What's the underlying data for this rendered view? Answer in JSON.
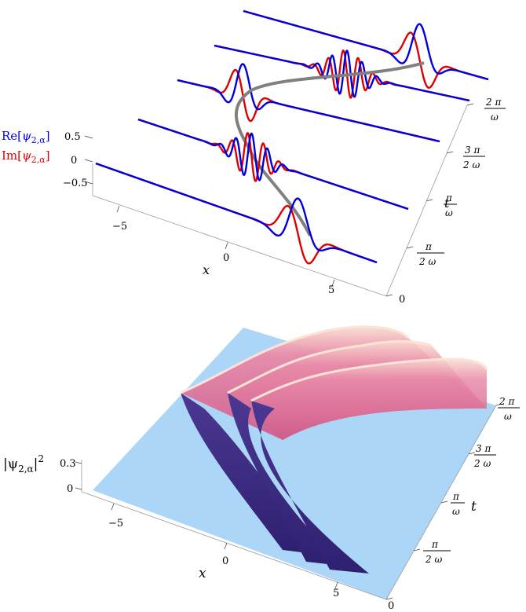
{
  "chart_data": [
    {
      "type": "line",
      "xlabel": "x",
      "tlabel": "t",
      "x_ticks": [
        "−5",
        "0",
        "5"
      ],
      "x_tick_values": [
        -5,
        0,
        5
      ],
      "x_range": [
        -8.5,
        8.5
      ],
      "t_ticks": [
        {
          "value_label": "0",
          "num": "",
          "den": ""
        },
        {
          "value_label": "",
          "num": "π",
          "den": "2 ω"
        },
        {
          "value_label": "",
          "num": "π",
          "den": "ω"
        },
        {
          "value_label": "",
          "num": "3 π",
          "den": "2 ω"
        },
        {
          "value_label": "",
          "num": "2 π",
          "den": "ω"
        }
      ],
      "t_values_over_pi_omega": [
        0,
        0.5,
        1,
        1.5,
        2
      ],
      "z_ticks": [
        "0.5",
        "0",
        "−0.5"
      ],
      "z_tick_values": [
        0.5,
        0,
        -0.5
      ],
      "series": [
        {
          "name": "Re[ψ2,α]",
          "color": "#0000dd"
        },
        {
          "name": "Im[ψ2,α]",
          "color": "#dd0000"
        }
      ],
      "center_path_color": "#808080",
      "slices_t_over_pi_omega": [
        0,
        0.5,
        1,
        1.5,
        2
      ]
    },
    {
      "type": "surface",
      "xlabel": "x",
      "tlabel": "t",
      "zlabel": "|ψ2,α|²",
      "x_ticks": [
        "−5",
        "0",
        "5"
      ],
      "x_tick_values": [
        -5,
        0,
        5
      ],
      "z_ticks": [
        "0.3",
        "0"
      ],
      "z_tick_values": [
        0.3,
        0
      ],
      "t_ticks": [
        {
          "value_label": "0",
          "num": "",
          "den": ""
        },
        {
          "value_label": "",
          "num": "π",
          "den": "2 ω"
        },
        {
          "value_label": "",
          "num": "π",
          "den": "ω"
        },
        {
          "value_label": "",
          "num": "3 π",
          "den": "2 ω"
        },
        {
          "value_label": "",
          "num": "2 π",
          "den": "ω"
        }
      ],
      "colors": {
        "floor": "#aad4f7",
        "low": "#3a2a80",
        "high": "#e8709a",
        "rim": "#f6d2c0"
      }
    }
  ],
  "legend": {
    "re_prefix": "Re[",
    "im_prefix": "Im[",
    "psi": "ψ",
    "sub": "2,α",
    "suffix": "]"
  },
  "top_axis": {
    "xlabel": "x",
    "tlabel": "t"
  },
  "bottom_axis": {
    "xlabel": "x",
    "tlabel": "t",
    "zlabel_bar": "|ψ",
    "zlabel_sub": "2,α",
    "zlabel_tail": "|",
    "zlabel_pow": "2"
  }
}
